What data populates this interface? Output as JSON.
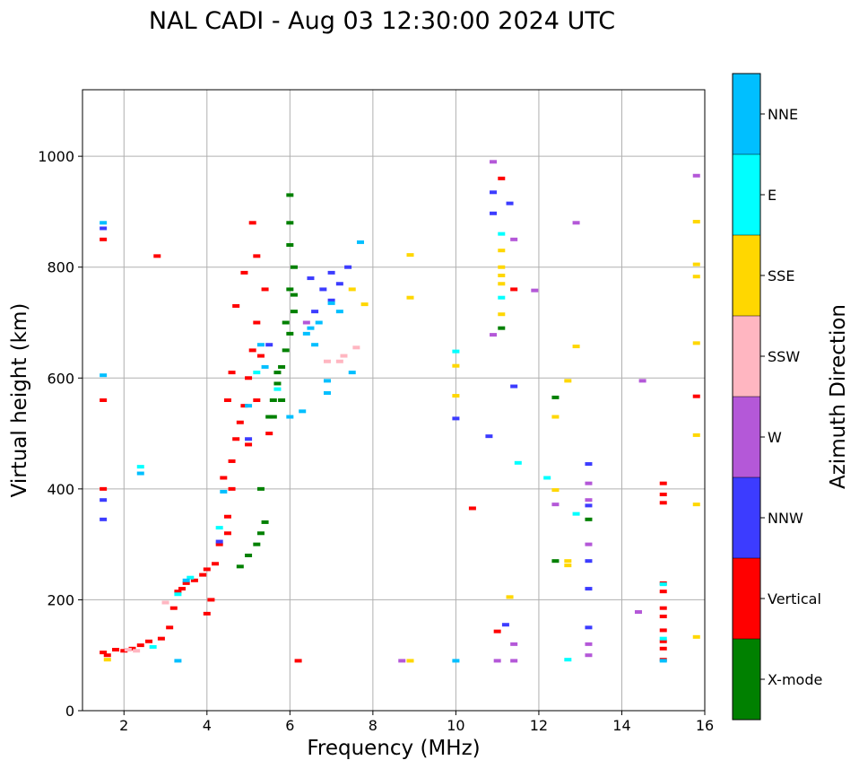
{
  "chart_data": {
    "type": "scatter",
    "title": "NAL CADI - Aug 03 12:30:00 2024 UTC",
    "xlabel": "Frequency (MHz)",
    "ylabel": "Virtual height (km)",
    "xlim": [
      1,
      16
    ],
    "ylim": [
      0,
      1120
    ],
    "xticks": [
      2,
      4,
      6,
      8,
      10,
      12,
      14,
      16
    ],
    "yticks": [
      0,
      200,
      400,
      600,
      800,
      1000
    ],
    "grid": true,
    "colorbar": {
      "label": "Azimuth Direction",
      "categories": [
        {
          "name": "X-mode",
          "color": "#008000"
        },
        {
          "name": "Vertical",
          "color": "#ff0000"
        },
        {
          "name": "NNW",
          "color": "#3c3cff"
        },
        {
          "name": "W",
          "color": "#b458d8"
        },
        {
          "name": "SSW",
          "color": "#ffb6c1"
        },
        {
          "name": "SSE",
          "color": "#ffd700"
        },
        {
          "name": "E",
          "color": "#00ffff"
        },
        {
          "name": "NNE",
          "color": "#00bfff"
        }
      ]
    },
    "series": [
      {
        "name": "Vertical",
        "color": "#ff0000",
        "points": [
          [
            1.5,
            105
          ],
          [
            1.6,
            100
          ],
          [
            1.8,
            110
          ],
          [
            2.0,
            108
          ],
          [
            2.2,
            112
          ],
          [
            2.4,
            118
          ],
          [
            2.6,
            125
          ],
          [
            2.9,
            130
          ],
          [
            3.1,
            150
          ],
          [
            3.2,
            185
          ],
          [
            3.3,
            215
          ],
          [
            3.4,
            220
          ],
          [
            3.5,
            230
          ],
          [
            3.7,
            235
          ],
          [
            3.9,
            245
          ],
          [
            4.0,
            255
          ],
          [
            4.0,
            175
          ],
          [
            4.1,
            200
          ],
          [
            4.2,
            265
          ],
          [
            4.3,
            300
          ],
          [
            4.5,
            320
          ],
          [
            4.5,
            350
          ],
          [
            4.6,
            400
          ],
          [
            4.6,
            450
          ],
          [
            4.7,
            490
          ],
          [
            4.8,
            520
          ],
          [
            4.9,
            550
          ],
          [
            5.0,
            480
          ],
          [
            5.0,
            600
          ],
          [
            5.1,
            650
          ],
          [
            5.2,
            700
          ],
          [
            5.2,
            560
          ],
          [
            5.3,
            640
          ],
          [
            5.4,
            760
          ],
          [
            5.2,
            820
          ],
          [
            5.1,
            880
          ],
          [
            4.9,
            790
          ],
          [
            4.7,
            730
          ],
          [
            4.6,
            610
          ],
          [
            4.5,
            560
          ],
          [
            5.5,
            500
          ],
          [
            4.4,
            420
          ],
          [
            1.5,
            560
          ],
          [
            1.5,
            400
          ],
          [
            1.5,
            850
          ],
          [
            2.8,
            820
          ],
          [
            6.2,
            90
          ],
          [
            10.4,
            365
          ],
          [
            11.1,
            960
          ],
          [
            11.4,
            760
          ],
          [
            11.0,
            143
          ],
          [
            15.0,
            390
          ],
          [
            15.0,
            375
          ],
          [
            15.0,
            410
          ],
          [
            15.0,
            230
          ],
          [
            15.0,
            215
          ],
          [
            15.0,
            185
          ],
          [
            15.0,
            170
          ],
          [
            15.0,
            145
          ],
          [
            15.0,
            125
          ],
          [
            15.0,
            112
          ],
          [
            15.0,
            92
          ],
          [
            15.8,
            567
          ]
        ]
      },
      {
        "name": "X-mode",
        "color": "#008000",
        "points": [
          [
            4.8,
            260
          ],
          [
            5.0,
            280
          ],
          [
            5.2,
            300
          ],
          [
            5.3,
            320
          ],
          [
            5.4,
            340
          ],
          [
            5.3,
            400
          ],
          [
            5.5,
            530
          ],
          [
            5.6,
            560
          ],
          [
            5.7,
            590
          ],
          [
            5.8,
            620
          ],
          [
            5.9,
            650
          ],
          [
            6.0,
            680
          ],
          [
            6.1,
            720
          ],
          [
            6.0,
            760
          ],
          [
            6.1,
            800
          ],
          [
            6.0,
            840
          ],
          [
            6.0,
            880
          ],
          [
            6.0,
            930
          ],
          [
            5.6,
            530
          ],
          [
            5.8,
            560
          ],
          [
            5.7,
            610
          ],
          [
            5.9,
            700
          ],
          [
            6.1,
            750
          ],
          [
            12.4,
            270
          ],
          [
            12.4,
            565
          ],
          [
            13.2,
            345
          ],
          [
            11.1,
            690
          ]
        ]
      },
      {
        "name": "NNW",
        "color": "#3c3cff",
        "points": [
          [
            1.5,
            345
          ],
          [
            1.5,
            380
          ],
          [
            1.5,
            870
          ],
          [
            4.3,
            305
          ],
          [
            5.0,
            490
          ],
          [
            5.5,
            660
          ],
          [
            6.5,
            780
          ],
          [
            6.8,
            760
          ],
          [
            7.0,
            740
          ],
          [
            7.2,
            770
          ],
          [
            7.4,
            800
          ],
          [
            7.0,
            790
          ],
          [
            6.6,
            720
          ],
          [
            10.0,
            527
          ],
          [
            10.8,
            495
          ],
          [
            10.9,
            935
          ],
          [
            10.9,
            897
          ],
          [
            11.2,
            155
          ],
          [
            11.4,
            585
          ],
          [
            13.2,
            220
          ],
          [
            13.2,
            270
          ],
          [
            13.2,
            370
          ],
          [
            13.2,
            445
          ],
          [
            13.2,
            150
          ],
          [
            11.3,
            915
          ]
        ]
      },
      {
        "name": "W",
        "color": "#b458d8",
        "points": [
          [
            8.7,
            90
          ],
          [
            10.9,
            990
          ],
          [
            10.9,
            678
          ],
          [
            11.0,
            90
          ],
          [
            11.4,
            120
          ],
          [
            11.4,
            90
          ],
          [
            11.9,
            758
          ],
          [
            12.4,
            372
          ],
          [
            12.9,
            880
          ],
          [
            13.2,
            120
          ],
          [
            13.2,
            100
          ],
          [
            13.2,
            300
          ],
          [
            13.2,
            410
          ],
          [
            13.2,
            380
          ],
          [
            14.4,
            178
          ],
          [
            14.5,
            595
          ],
          [
            15.8,
            965
          ],
          [
            11.4,
            850
          ],
          [
            6.4,
            700
          ]
        ]
      },
      {
        "name": "SSW",
        "color": "#ffb6c1",
        "points": [
          [
            2.1,
            110
          ],
          [
            2.3,
            108
          ],
          [
            7.2,
            630
          ],
          [
            7.3,
            640
          ],
          [
            7.6,
            655
          ],
          [
            6.9,
            630
          ],
          [
            3.0,
            195
          ]
        ]
      },
      {
        "name": "SSE",
        "color": "#ffd700",
        "points": [
          [
            1.6,
            92
          ],
          [
            8.9,
            822
          ],
          [
            8.9,
            745
          ],
          [
            8.9,
            90
          ],
          [
            10.0,
            622
          ],
          [
            10.0,
            568
          ],
          [
            11.1,
            830
          ],
          [
            11.1,
            800
          ],
          [
            11.1,
            785
          ],
          [
            11.1,
            770
          ],
          [
            11.1,
            715
          ],
          [
            11.3,
            205
          ],
          [
            12.4,
            530
          ],
          [
            12.4,
            398
          ],
          [
            12.7,
            595
          ],
          [
            12.7,
            270
          ],
          [
            12.7,
            262
          ],
          [
            12.9,
            657
          ],
          [
            15.8,
            882
          ],
          [
            15.8,
            805
          ],
          [
            15.8,
            783
          ],
          [
            15.8,
            663
          ],
          [
            15.8,
            497
          ],
          [
            15.8,
            372
          ],
          [
            15.8,
            133
          ],
          [
            7.8,
            733
          ],
          [
            7.5,
            760
          ]
        ]
      },
      {
        "name": "E",
        "color": "#00ffff",
        "points": [
          [
            2.4,
            440
          ],
          [
            2.7,
            115
          ],
          [
            3.3,
            210
          ],
          [
            3.6,
            240
          ],
          [
            4.3,
            330
          ],
          [
            5.2,
            610
          ],
          [
            5.7,
            580
          ],
          [
            10.0,
            648
          ],
          [
            11.5,
            447
          ],
          [
            12.2,
            420
          ],
          [
            12.9,
            355
          ],
          [
            12.7,
            92
          ],
          [
            15.0,
            130
          ],
          [
            15.0,
            228
          ],
          [
            11.1,
            860
          ],
          [
            11.1,
            745
          ]
        ]
      },
      {
        "name": "NNE",
        "color": "#00bfff",
        "points": [
          [
            1.5,
            605
          ],
          [
            1.5,
            880
          ],
          [
            2.4,
            428
          ],
          [
            3.3,
            90
          ],
          [
            3.5,
            235
          ],
          [
            4.4,
            395
          ],
          [
            5.0,
            550
          ],
          [
            5.3,
            660
          ],
          [
            5.4,
            620
          ],
          [
            6.0,
            530
          ],
          [
            6.3,
            540
          ],
          [
            6.4,
            680
          ],
          [
            6.5,
            690
          ],
          [
            6.7,
            700
          ],
          [
            6.9,
            595
          ],
          [
            7.0,
            735
          ],
          [
            7.2,
            720
          ],
          [
            7.7,
            845
          ],
          [
            6.6,
            660
          ],
          [
            6.9,
            573
          ],
          [
            7.5,
            610
          ],
          [
            10.0,
            90
          ],
          [
            15.0,
            90
          ]
        ]
      }
    ]
  }
}
